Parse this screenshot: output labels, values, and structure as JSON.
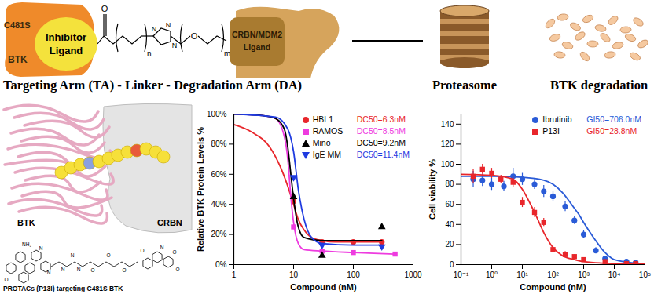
{
  "diagram": {
    "schematic": {
      "target": {
        "lines": [
          "C481S",
          "BTK"
        ]
      },
      "inhibitor": {
        "lines": [
          "Inhibitor",
          "Ligand"
        ]
      },
      "linker": {
        "atoms": [
          "O",
          "N",
          "N",
          "N",
          "O"
        ],
        "subscripts": [
          "n",
          "m"
        ]
      },
      "degrader": {
        "lines": [
          "CRBN/MDM2",
          "Ligand"
        ]
      },
      "caption": "Targeting Arm (TA) - Linker - Degradation Arm (DA)",
      "proteasome": "Proteasome",
      "result": "BTK degradation"
    },
    "structure": {
      "labels": [
        "BTK",
        "CRBN"
      ],
      "molecule_atoms": [
        "NH₂",
        "N",
        "N",
        "O",
        "N",
        "N",
        "N",
        "O",
        "O",
        "O",
        "O",
        "N",
        "O",
        "O"
      ],
      "caption": "PROTACs (P13I) targeting C481S BTK"
    }
  },
  "chart_data": [
    {
      "type": "line",
      "x_label": "Compound (nM)",
      "y_label": "Relative BTK Protein Levels %",
      "log": "x",
      "xlim": [
        1,
        1000
      ],
      "xticks": [
        1,
        10,
        100,
        1000
      ],
      "ylim": [
        0,
        100
      ],
      "yticks": [
        {
          "value": 0,
          "label": "0%"
        },
        {
          "value": 20,
          "label": "20%"
        },
        {
          "value": 40,
          "label": "40%"
        },
        {
          "value": 60,
          "label": "60%"
        },
        {
          "value": 80,
          "label": "80%"
        },
        {
          "value": 100,
          "label": "100%"
        }
      ],
      "grid": false,
      "legend": "top-right",
      "series": [
        {
          "name": "HBL1",
          "color": "#e8262b",
          "marker": "circle",
          "annotation": "DC50=6.3nM",
          "x": [
            10,
            30,
            100,
            300
          ],
          "values": [
            42,
            15,
            15,
            15
          ],
          "fit_x": [
            1,
            2,
            4,
            6,
            8,
            10,
            12,
            15,
            20,
            30,
            50,
            100,
            300
          ],
          "fit_values": [
            93,
            88,
            78,
            65,
            52,
            40,
            30,
            23,
            18,
            16,
            15,
            15,
            15
          ]
        },
        {
          "name": "RAMOS",
          "color": "#ee3bdf",
          "marker": "square",
          "annotation": "DC50=8.5nM",
          "x": [
            10,
            30,
            100,
            500
          ],
          "values": [
            25,
            9,
            8,
            7
          ],
          "fit_x": [
            1,
            3,
            5,
            7,
            8,
            9,
            10,
            12,
            15,
            30,
            100,
            500
          ],
          "fit_values": [
            100,
            99,
            97,
            85,
            70,
            45,
            28,
            14,
            10,
            9,
            8,
            7
          ]
        },
        {
          "name": "Mino",
          "color": "#000000",
          "marker": "triangle-up",
          "annotation": "DC50=9.2nM",
          "x": [
            10,
            30,
            300
          ],
          "values": [
            45,
            6,
            25
          ],
          "fit_x": [
            1,
            3,
            5,
            7,
            8,
            9,
            10,
            12,
            15,
            30,
            100,
            300
          ],
          "fit_values": [
            100,
            99,
            97,
            90,
            78,
            60,
            44,
            25,
            18,
            16,
            16,
            16
          ]
        },
        {
          "name": "IgE MM",
          "color": "#1f3be0",
          "marker": "triangle-down",
          "annotation": "DC50=11.4nM",
          "x": [
            10,
            30,
            300
          ],
          "values": [
            58,
            13,
            12
          ],
          "fit_x": [
            1,
            5,
            8,
            10,
            12,
            15,
            20,
            30,
            100,
            300
          ],
          "fit_values": [
            100,
            98,
            90,
            75,
            50,
            30,
            18,
            14,
            13,
            13
          ]
        }
      ]
    },
    {
      "type": "line",
      "x_label": "Compound (nM)",
      "y_label": "Cell viability %",
      "log": "x",
      "xlim": [
        0.1,
        100000
      ],
      "xticks": [
        {
          "value": 0.1,
          "label": "10⁻¹"
        },
        {
          "value": 1,
          "label": "10⁰"
        },
        {
          "value": 10,
          "label": "10¹"
        },
        {
          "value": 100,
          "label": "10²"
        },
        {
          "value": 1000,
          "label": "10³"
        },
        {
          "value": 10000,
          "label": "10⁴"
        },
        {
          "value": 100000,
          "label": "10⁵"
        }
      ],
      "ylim": [
        0,
        150
      ],
      "yticks": [
        0,
        20,
        40,
        60,
        80,
        100,
        120,
        140
      ],
      "grid": false,
      "legend": "top-right",
      "series": [
        {
          "name": "Ibrutinib",
          "color": "#2a5bd7",
          "marker": "circle",
          "annotation": "GI50=706.0nM",
          "x": [
            0.25,
            0.5,
            1,
            2.5,
            5,
            10,
            25,
            50,
            100,
            250,
            500,
            1000,
            2500,
            5000,
            25000,
            50000
          ],
          "values": [
            85,
            84,
            80,
            78,
            88,
            85,
            80,
            73,
            68,
            58,
            44,
            30,
            14,
            6,
            3,
            2
          ],
          "errors": [
            8,
            6,
            6,
            5,
            8,
            6,
            5,
            6,
            5,
            5,
            4,
            4,
            3,
            2,
            2,
            2
          ],
          "fit_x": [
            0.1,
            1,
            10,
            50,
            100,
            200,
            500,
            700,
            1000,
            2000,
            5000,
            10000,
            100000
          ],
          "fit_values": [
            88,
            88,
            87,
            84,
            80,
            72,
            56,
            50,
            42,
            28,
            12,
            5,
            0.5
          ]
        },
        {
          "name": "P13I",
          "color": "#e8262b",
          "marker": "square",
          "annotation": "GI50=28.8nM",
          "x": [
            0.25,
            0.5,
            1,
            2,
            5,
            10,
            25,
            50,
            100,
            250,
            500,
            1000,
            5000,
            25000,
            50000
          ],
          "values": [
            88,
            95,
            91,
            85,
            82,
            62,
            52,
            42,
            15,
            10,
            8,
            5,
            3,
            1,
            1
          ],
          "errors": [
            7,
            5,
            5,
            4,
            5,
            5,
            5,
            4,
            3,
            3,
            2,
            2,
            2,
            1,
            1
          ],
          "fit_x": [
            0.1,
            1,
            5,
            10,
            20,
            28.8,
            50,
            100,
            200,
            500,
            1000,
            10000,
            100000
          ],
          "fit_values": [
            90,
            89,
            85,
            75,
            58,
            48,
            32,
            17,
            9,
            5,
            3,
            1,
            0.5
          ]
        }
      ]
    }
  ]
}
